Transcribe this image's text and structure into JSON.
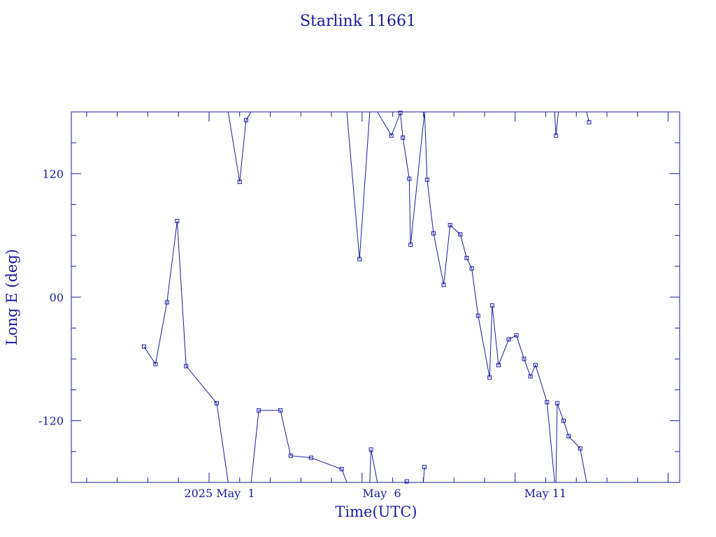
{
  "chart_data": {
    "type": "line",
    "title": "Starlink 11661",
    "xlabel": "Time(UTC)",
    "ylabel": "Long E (deg)",
    "x_tick_labels": [
      "2025 May  1",
      "May  6",
      "May 11"
    ],
    "y_tick_labels": [
      "-120",
      "00",
      "120"
    ],
    "y_tick_values": [
      -120,
      0,
      120
    ],
    "xlim": [
      "2025-04-26T12:00",
      "2025-05-16T09:00"
    ],
    "ylim": [
      -180,
      180
    ],
    "grid": false,
    "legend": "none",
    "color": "#1a1aa6",
    "marker": "square",
    "series": [
      {
        "values": [
          [
            "2025-04-28T21:00",
            -48
          ],
          [
            "2025-04-29T06:00",
            -65
          ],
          [
            "2025-04-29T15:00",
            -5
          ],
          [
            "2025-04-29T23:00",
            74
          ],
          [
            "2025-04-30T06:00",
            -67
          ],
          [
            "2025-05-01T06:00",
            -103
          ],
          [
            "2025-05-01T15:00",
            -180
          ]
        ]
      },
      {
        "values": [
          [
            "2025-05-01T15:00",
            180
          ],
          [
            "2025-05-02T00:00",
            112
          ],
          [
            "2025-05-02T05:00",
            172
          ],
          [
            "2025-05-02T09:00",
            180
          ]
        ]
      },
      {
        "values": [
          [
            "2025-05-02T09:00",
            -180
          ],
          [
            "2025-05-02T15:00",
            -110
          ],
          [
            "2025-05-03T08:00",
            -110
          ],
          [
            "2025-05-03T16:00",
            -154
          ],
          [
            "2025-05-04T08:00",
            -156
          ],
          [
            "2025-05-05T08:00",
            -167
          ],
          [
            "2025-05-05T12:00",
            -180
          ]
        ]
      },
      {
        "values": [
          [
            "2025-05-05T12:00",
            180
          ],
          [
            "2025-05-05T22:00",
            37
          ],
          [
            "2025-05-06T06:00",
            180
          ]
        ]
      },
      {
        "values": [
          [
            "2025-05-06T06:00",
            -180
          ],
          [
            "2025-05-06T07:00",
            -148
          ],
          [
            "2025-05-06T12:00",
            -180
          ]
        ]
      },
      {
        "values": [
          [
            "2025-05-06T12:00",
            180
          ],
          [
            "2025-05-06T23:00",
            157
          ],
          [
            "2025-05-07T06:00",
            179
          ],
          [
            "2025-05-07T08:00",
            155
          ],
          [
            "2025-05-07T13:00",
            115
          ],
          [
            "2025-05-07T14:00",
            51
          ],
          [
            "2025-05-08T01:00",
            180
          ]
        ]
      },
      {
        "values": [
          [
            "2025-05-07T10:00",
            -180
          ],
          [
            "2025-05-07T11:00",
            -179
          ]
        ]
      },
      {
        "values": [
          [
            "2025-05-07T10:00",
            -180
          ],
          [
            "2025-05-08T00:00",
            -180
          ],
          [
            "2025-05-08T01:00",
            -165
          ]
        ]
      },
      {
        "values": [
          [
            "2025-05-08T01:00",
            180
          ],
          [
            "2025-05-08T03:00",
            114
          ],
          [
            "2025-05-08T08:00",
            62
          ],
          [
            "2025-05-08T16:00",
            12
          ],
          [
            "2025-05-08T21:00",
            70
          ],
          [
            "2025-05-09T05:00",
            61
          ],
          [
            "2025-05-09T10:00",
            38
          ],
          [
            "2025-05-09T14:00",
            28
          ],
          [
            "2025-05-09T19:00",
            -18
          ],
          [
            "2025-05-10T04:00",
            -78
          ],
          [
            "2025-05-10T06:00",
            -8
          ],
          [
            "2025-05-10T11:00",
            -66
          ],
          [
            "2025-05-10T19:00",
            -41
          ],
          [
            "2025-05-11T01:00",
            -37
          ],
          [
            "2025-05-11T07:00",
            -60
          ],
          [
            "2025-05-11T12:00",
            -77
          ],
          [
            "2025-05-11T16:00",
            -66
          ],
          [
            "2025-05-12T01:00",
            -102
          ],
          [
            "2025-05-12T07:00",
            -180
          ]
        ]
      },
      {
        "values": [
          [
            "2025-05-12T07:00",
            180
          ],
          [
            "2025-05-12T08:00",
            157
          ],
          [
            "2025-05-12T10:00",
            180
          ]
        ]
      },
      {
        "values": [
          [
            "2025-05-12T08:00",
            -180
          ],
          [
            "2025-05-12T09:00",
            -103
          ],
          [
            "2025-05-12T14:00",
            -120
          ],
          [
            "2025-05-12T18:00",
            -135
          ],
          [
            "2025-05-13T03:00",
            -147
          ],
          [
            "2025-05-13T08:00",
            -180
          ]
        ]
      },
      {
        "values": [
          [
            "2025-05-13T08:00",
            180
          ],
          [
            "2025-05-13T10:00",
            170
          ]
        ]
      }
    ]
  }
}
